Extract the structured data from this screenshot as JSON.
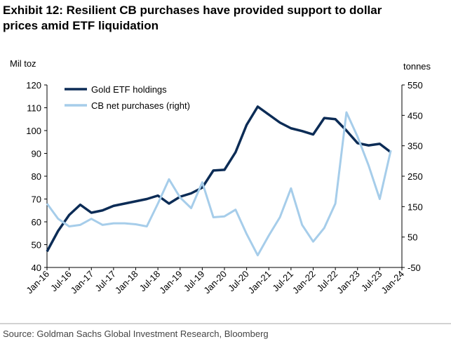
{
  "chart_data": {
    "type": "line",
    "title": "Exhibit 12: Resilient CB purchases have provided support to dollar prices amid ETF liquidation",
    "y_label": "Mil toz",
    "y2_label": "tonnes",
    "source": "Source: Goldman Sachs Global Investment Research, Bloomberg",
    "categories": [
      "Jan-16",
      null,
      "Jul-16",
      null,
      "Jan-17",
      null,
      "Jul-17",
      null,
      "Jan-18",
      null,
      "Jul-18",
      null,
      "Jan-19",
      null,
      "Jul-19",
      null,
      "Jan-20",
      null,
      "Jul-20",
      null,
      "Jan-21",
      null,
      "Jul-21",
      null,
      "Jan-22",
      null,
      "Jul-22",
      null,
      "Jan-23",
      null,
      "Jul-23",
      null,
      "Jan-24"
    ],
    "series": [
      {
        "name": "Gold ETF holdings",
        "color": "#0c2c56",
        "values": [
          47,
          56,
          63,
          67.5,
          64,
          65,
          67,
          68,
          69,
          70,
          71.5,
          68,
          71,
          72.5,
          75,
          82.5,
          82.8,
          90.5,
          102.5,
          110.5,
          107,
          103.5,
          101,
          99.8,
          98.3,
          105.5,
          105,
          100,
          94.5,
          93.5,
          94.2,
          90.5,
          null
        ]
      },
      {
        "name": "CB net purchases (right)",
        "color": "#a6cdea",
        "axis": "y2",
        "values": [
          160,
          110,
          85,
          90,
          110,
          90,
          95,
          95,
          92,
          85,
          160,
          240,
          180,
          145,
          230,
          115,
          118,
          140,
          60,
          -10,
          55,
          115,
          210,
          90,
          35,
          80,
          160,
          460,
          380,
          285,
          175,
          335,
          null
        ]
      }
    ],
    "ylim": [
      40,
      120
    ],
    "yticks": [
      40,
      50,
      60,
      70,
      80,
      90,
      100,
      110,
      120
    ],
    "y2lim": [
      -50,
      550
    ],
    "y2ticks": [
      -50,
      50,
      150,
      250,
      350,
      450,
      550
    ],
    "legend": "upper left"
  }
}
